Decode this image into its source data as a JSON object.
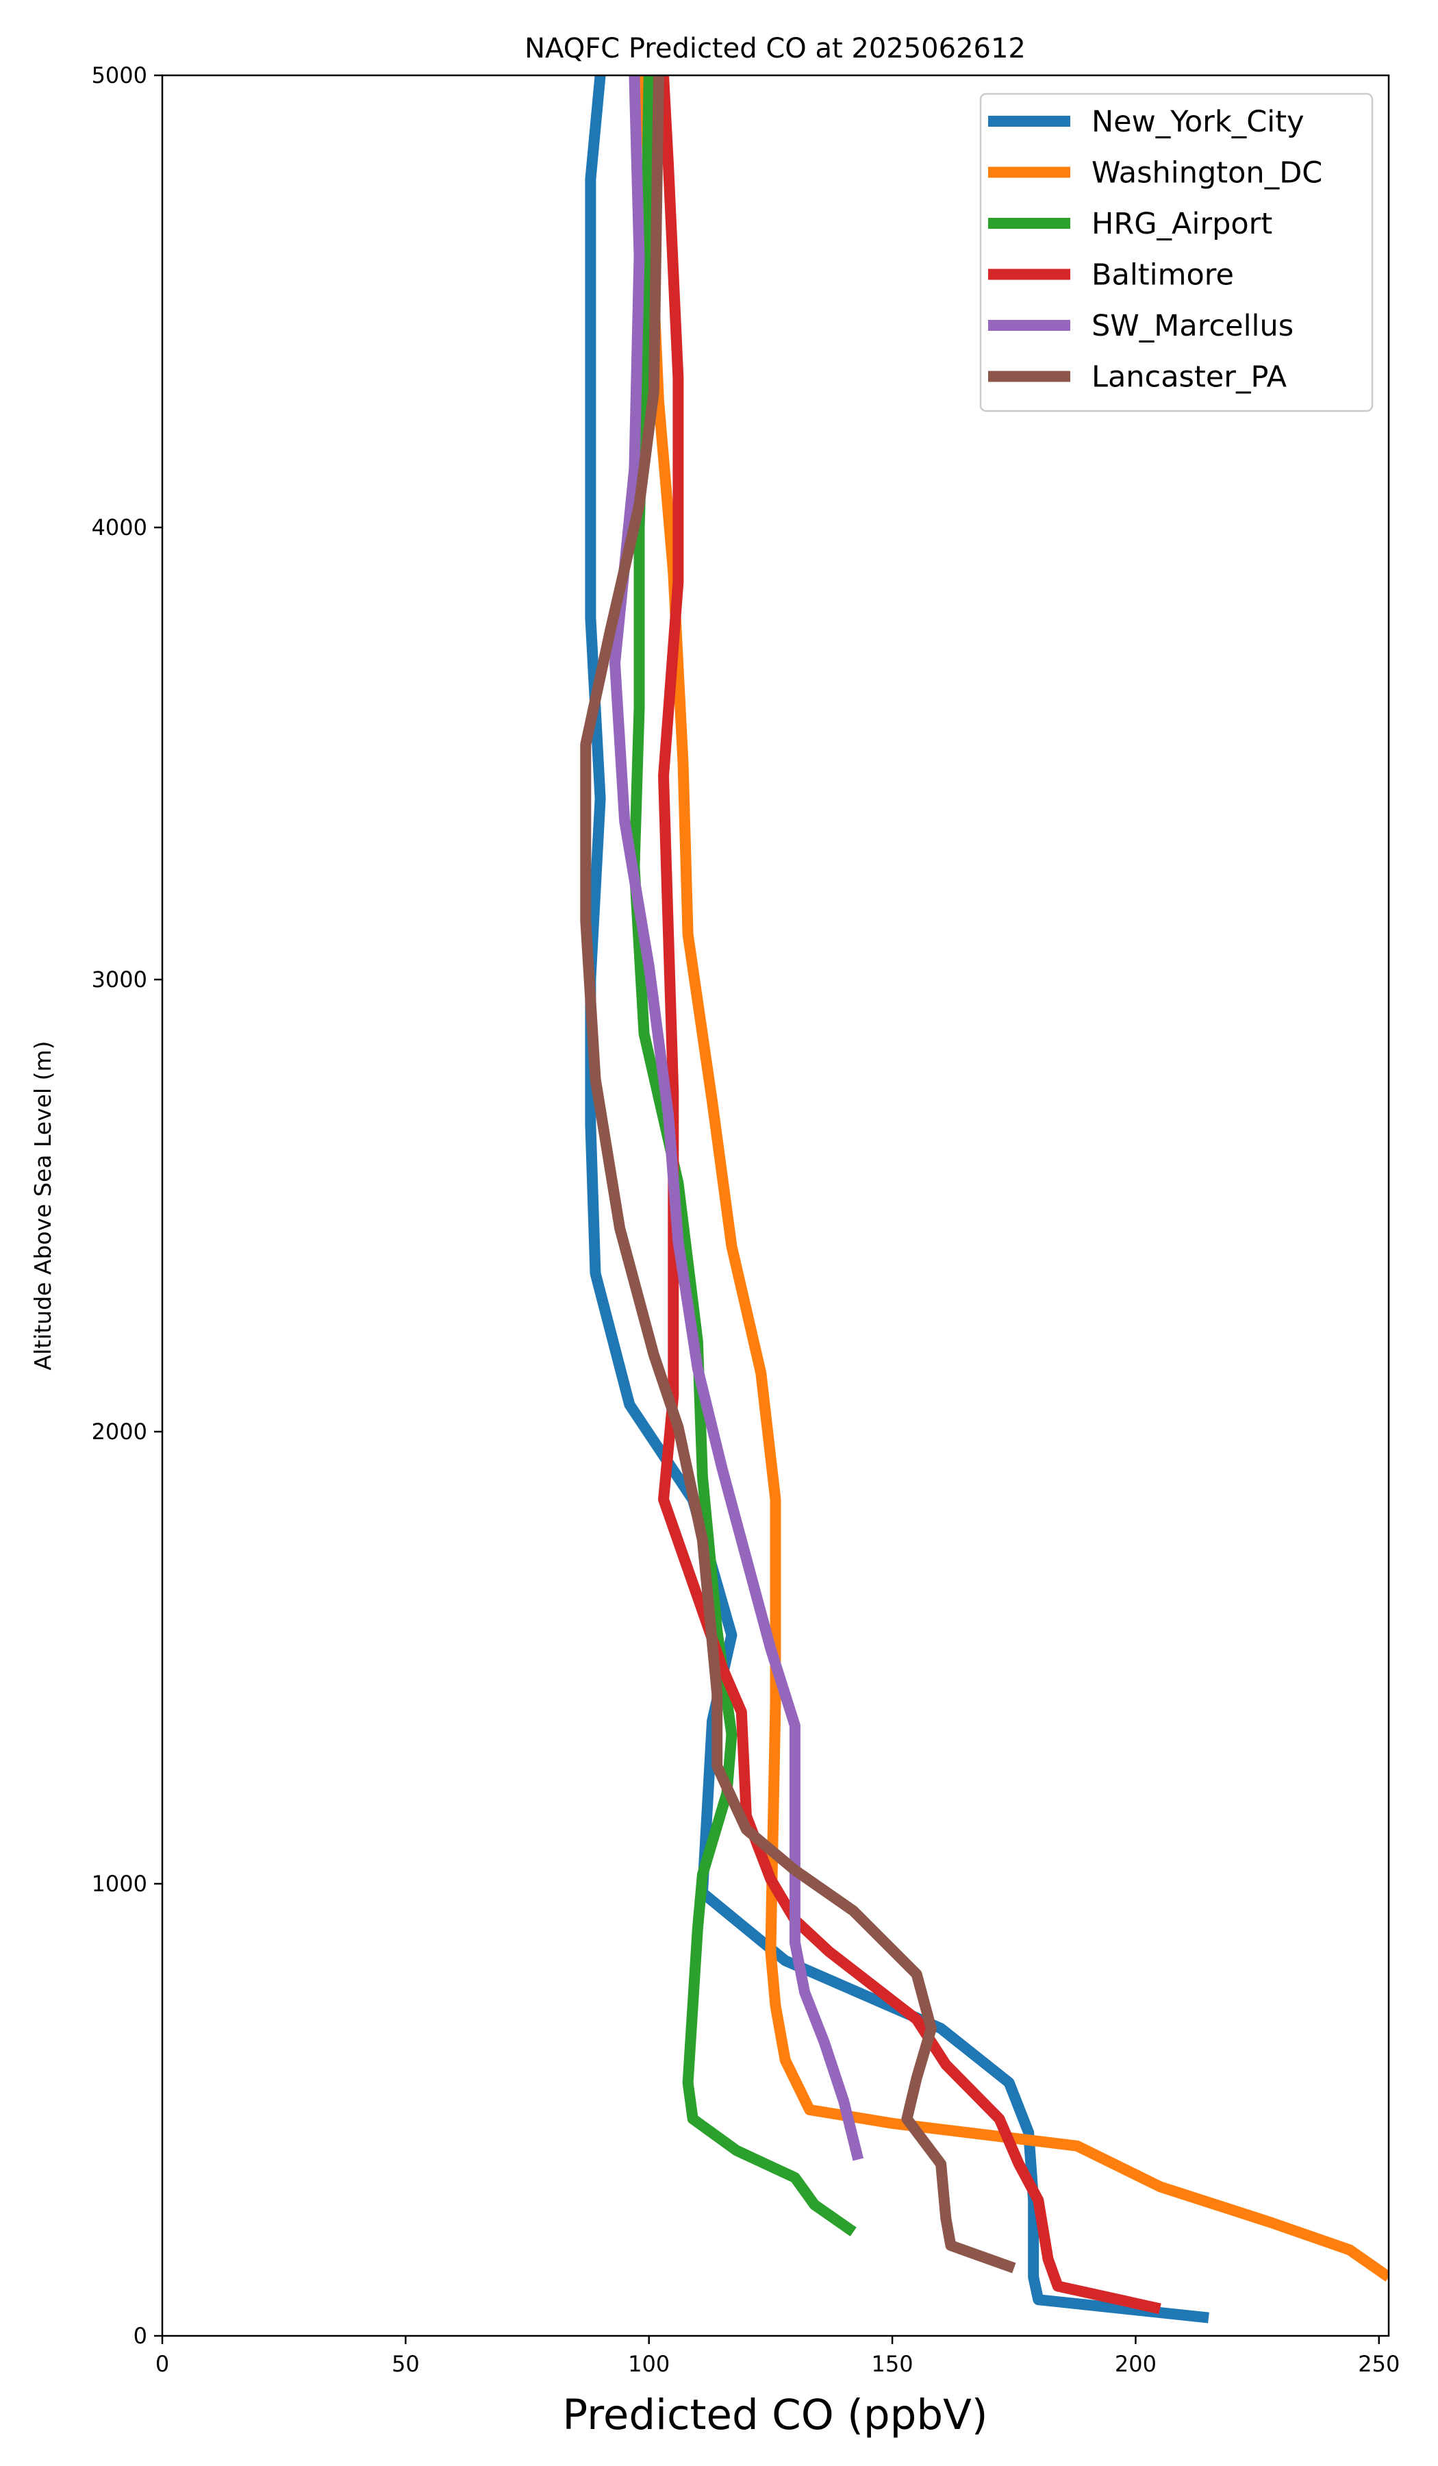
{
  "chart_data": {
    "type": "line",
    "title": "NAQFC Predicted CO at 2025062612",
    "xlabel": "Predicted CO (ppbV)",
    "ylabel": "Altitude Above Sea Level (m)",
    "xlim": [
      0,
      252
    ],
    "ylim": [
      0,
      5000
    ],
    "xticks": [
      "0",
      "50",
      "100",
      "150",
      "200",
      "250"
    ],
    "yticks": [
      "0",
      "1000",
      "2000",
      "3000",
      "4000",
      "5000"
    ],
    "xtick_values": [
      0,
      50,
      100,
      150,
      200,
      250
    ],
    "ytick_values": [
      0,
      1000,
      2000,
      3000,
      4000,
      5000
    ],
    "grid": false,
    "legend_position": "top-right",
    "series": [
      {
        "name": "New_York_City",
        "color": "#1f77b4",
        "points": [
          [
            215,
            40
          ],
          [
            180,
            80
          ],
          [
            179,
            130
          ],
          [
            179,
            300
          ],
          [
            178,
            450
          ],
          [
            174,
            560
          ],
          [
            160,
            680
          ],
          [
            128,
            830
          ],
          [
            111,
            980
          ],
          [
            113,
            1360
          ],
          [
            117,
            1550
          ],
          [
            109,
            1850
          ],
          [
            96,
            2060
          ],
          [
            89,
            2350
          ],
          [
            88,
            2680
          ],
          [
            88,
            3000
          ],
          [
            90,
            3400
          ],
          [
            88,
            3800
          ],
          [
            88,
            4300
          ],
          [
            88,
            4770
          ],
          [
            90,
            5000
          ]
        ]
      },
      {
        "name": "Washington_DC",
        "color": "#ff7f0e",
        "points": [
          [
            252,
            130
          ],
          [
            244,
            190
          ],
          [
            228,
            250
          ],
          [
            205,
            330
          ],
          [
            188,
            420
          ],
          [
            150,
            470
          ],
          [
            133,
            500
          ],
          [
            128,
            610
          ],
          [
            126,
            730
          ],
          [
            125,
            850
          ],
          [
            126,
            1400
          ],
          [
            126,
            1850
          ],
          [
            123,
            2130
          ],
          [
            117,
            2410
          ],
          [
            113,
            2730
          ],
          [
            108,
            3100
          ],
          [
            107,
            3480
          ],
          [
            105,
            3900
          ],
          [
            102,
            4280
          ],
          [
            99,
            5000
          ]
        ]
      },
      {
        "name": "HRG_Airport",
        "color": "#2ca02c",
        "points": [
          [
            142,
            230
          ],
          [
            134,
            290
          ],
          [
            130,
            350
          ],
          [
            118,
            410
          ],
          [
            109,
            480
          ],
          [
            108,
            560
          ],
          [
            110,
            900
          ],
          [
            111,
            1020
          ],
          [
            116,
            1200
          ],
          [
            117,
            1330
          ],
          [
            114,
            1560
          ],
          [
            111,
            1900
          ],
          [
            110,
            2200
          ],
          [
            106,
            2550
          ],
          [
            99,
            2880
          ],
          [
            97,
            3250
          ],
          [
            98,
            3600
          ],
          [
            98,
            4000
          ],
          [
            99,
            4350
          ],
          [
            100,
            5000
          ]
        ]
      },
      {
        "name": "Baltimore",
        "color": "#d62728",
        "points": [
          [
            205,
            60
          ],
          [
            184,
            110
          ],
          [
            182,
            170
          ],
          [
            180,
            300
          ],
          [
            176,
            380
          ],
          [
            172,
            480
          ],
          [
            161,
            600
          ],
          [
            155,
            700
          ],
          [
            137,
            850
          ],
          [
            130,
            920
          ],
          [
            125,
            1010
          ],
          [
            120,
            1150
          ],
          [
            119,
            1380
          ],
          [
            115,
            1480
          ],
          [
            103,
            1850
          ],
          [
            105,
            2080
          ],
          [
            105,
            2400
          ],
          [
            105,
            2750
          ],
          [
            104,
            3100
          ],
          [
            103,
            3450
          ],
          [
            106,
            3880
          ],
          [
            106,
            4330
          ],
          [
            104,
            4800
          ],
          [
            103,
            5000
          ]
        ]
      },
      {
        "name": "SW_Marcellus",
        "color": "#9467bd",
        "points": [
          [
            143,
            390
          ],
          [
            140,
            520
          ],
          [
            136,
            650
          ],
          [
            132,
            760
          ],
          [
            130,
            870
          ],
          [
            130,
            1000
          ],
          [
            130,
            1180
          ],
          [
            130,
            1350
          ],
          [
            125,
            1520
          ],
          [
            115,
            1920
          ],
          [
            110,
            2140
          ],
          [
            106,
            2420
          ],
          [
            104,
            2700
          ],
          [
            100,
            3030
          ],
          [
            95,
            3350
          ],
          [
            93,
            3700
          ],
          [
            97,
            4130
          ],
          [
            98,
            4600
          ],
          [
            97,
            5000
          ]
        ]
      },
      {
        "name": "Lancaster_PA",
        "color": "#8c564b",
        "points": [
          [
            175,
            150
          ],
          [
            162,
            200
          ],
          [
            161,
            260
          ],
          [
            160,
            380
          ],
          [
            153,
            480
          ],
          [
            155,
            570
          ],
          [
            158,
            680
          ],
          [
            155,
            800
          ],
          [
            142,
            940
          ],
          [
            130,
            1030
          ],
          [
            120,
            1120
          ],
          [
            114,
            1260
          ],
          [
            114,
            1420
          ],
          [
            111,
            1760
          ],
          [
            106,
            2010
          ],
          [
            101,
            2170
          ],
          [
            94,
            2450
          ],
          [
            89,
            2780
          ],
          [
            87,
            3130
          ],
          [
            87,
            3520
          ],
          [
            92,
            3770
          ],
          [
            98,
            4050
          ],
          [
            101,
            4300
          ],
          [
            102,
            5000
          ]
        ]
      }
    ]
  }
}
